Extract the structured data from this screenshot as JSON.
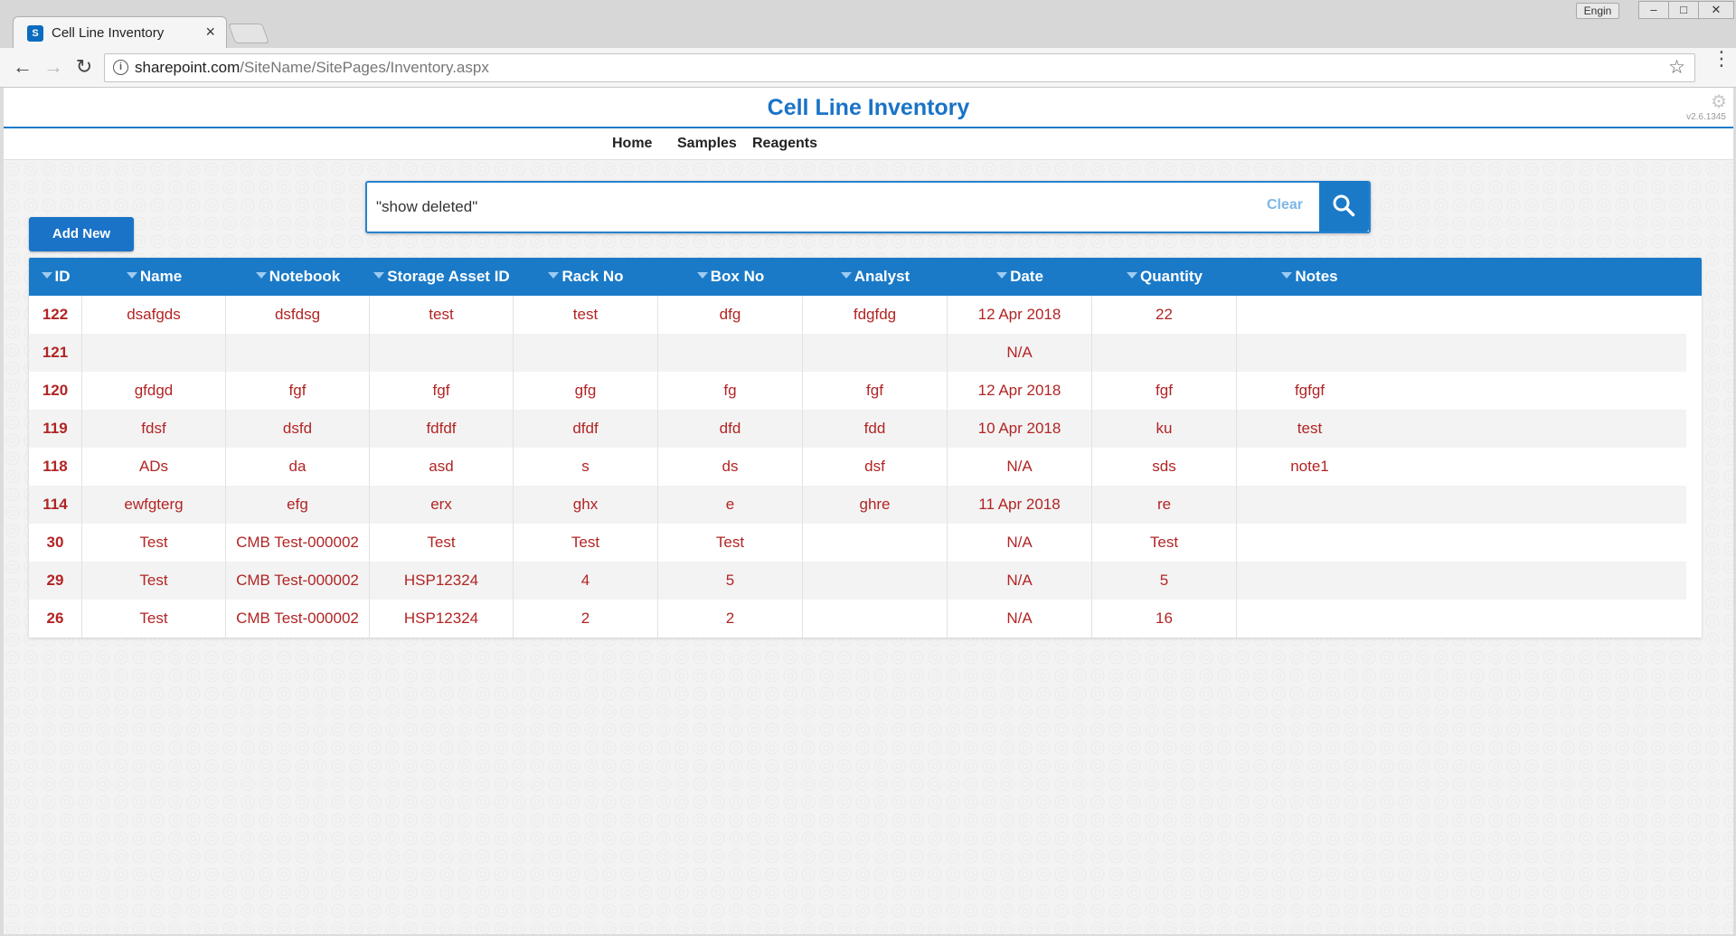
{
  "browser": {
    "user": "Engin",
    "tab_title": "Cell Line Inventory",
    "favicon_text": "S",
    "url_host": "sharepoint.com",
    "url_path": "/SiteName/SitePages/Inventory.aspx",
    "minimize": "–",
    "maximize": "□",
    "close": "✕",
    "tab_close": "×"
  },
  "site": {
    "title": "Cell Line Inventory",
    "version": "v2.6.1345",
    "nav": [
      "Home",
      "Samples",
      "Reagents"
    ]
  },
  "search": {
    "value": "\"show deleted\"",
    "clear_label": "Clear"
  },
  "add_button_label": "Add New",
  "table": {
    "columns": [
      "ID",
      "Name",
      "Notebook",
      "Storage Asset ID",
      "Rack No",
      "Box No",
      "Analyst",
      "Date",
      "Quantity",
      "Notes"
    ],
    "rows": [
      [
        "122",
        "dsafgds",
        "dsfdsg",
        "test",
        "test",
        "dfg",
        "fdgfdg",
        "12 Apr 2018",
        "22",
        ""
      ],
      [
        "121",
        "",
        "",
        "",
        "",
        "",
        "",
        "N/A",
        "",
        ""
      ],
      [
        "120",
        "gfdgd",
        "fgf",
        "fgf",
        "gfg",
        "fg",
        "fgf",
        "12 Apr 2018",
        "fgf",
        "fgfgf"
      ],
      [
        "119",
        "fdsf",
        "dsfd",
        "fdfdf",
        "dfdf",
        "dfd",
        "fdd",
        "10 Apr 2018",
        "ku",
        "test"
      ],
      [
        "118",
        "ADs",
        "da",
        "asd",
        "s",
        "ds",
        "dsf",
        "N/A",
        "sds",
        "note1"
      ],
      [
        "114",
        "ewfgterg",
        "efg",
        "erx",
        "ghx",
        "e",
        "ghre",
        "11 Apr 2018",
        "re",
        ""
      ],
      [
        "30",
        "Test",
        "CMB Test-000002",
        "Test",
        "Test",
        "Test",
        "",
        "N/A",
        "Test",
        ""
      ],
      [
        "29",
        "Test",
        "CMB Test-000002",
        "HSP12324",
        "4",
        "5",
        "",
        "N/A",
        "5",
        ""
      ],
      [
        "26",
        "Test",
        "CMB Test-000002",
        "HSP12324",
        "2",
        "2",
        "",
        "N/A",
        "16",
        ""
      ]
    ]
  },
  "colors": {
    "accent": "#1a7ac8",
    "cell_text": "#b22424"
  }
}
